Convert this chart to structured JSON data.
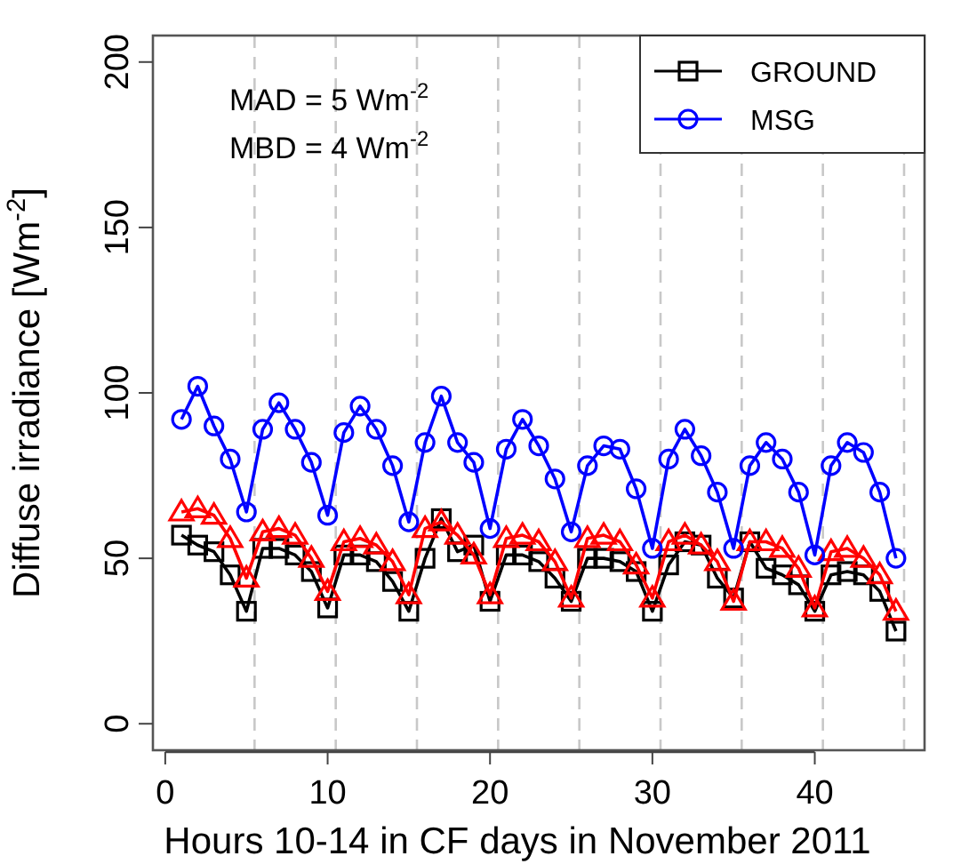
{
  "chart_data": {
    "type": "line",
    "xlabel": "Hours 10-14 in CF days in November 2011",
    "ylabel": "Diffuse irradiance [Wm$^{-2}$]",
    "x": [
      1,
      2,
      3,
      4,
      5,
      6,
      7,
      8,
      9,
      10,
      11,
      12,
      13,
      14,
      15,
      16,
      17,
      18,
      19,
      20,
      21,
      22,
      23,
      24,
      25,
      26,
      27,
      28,
      29,
      30,
      31,
      32,
      33,
      34,
      35,
      36,
      37,
      38,
      39,
      40,
      41,
      42,
      43,
      44,
      45
    ],
    "xlim": [
      -0.76,
      46.76
    ],
    "xticks": [
      0,
      10,
      20,
      30,
      40
    ],
    "ylim": [
      -8,
      208
    ],
    "yticks": [
      0,
      50,
      100,
      150,
      200
    ],
    "grid": false,
    "legend": "top right",
    "line_style": "solid",
    "annotations": [
      "MAD =  5 Wm$^{-2}$",
      "MBD  =  4 Wm$^{-2}$"
    ],
    "ref_lines": [
      {
        "axis": "x",
        "value": 5.5,
        "color": "#c8c8c8",
        "line_style": "dashed"
      },
      {
        "axis": "x",
        "value": 10.5,
        "color": "#c8c8c8",
        "line_style": "dashed"
      },
      {
        "axis": "x",
        "value": 15.5,
        "color": "#c8c8c8",
        "line_style": "dashed"
      },
      {
        "axis": "x",
        "value": 20.5,
        "color": "#c8c8c8",
        "line_style": "dashed"
      },
      {
        "axis": "x",
        "value": 25.5,
        "color": "#c8c8c8",
        "line_style": "dashed"
      },
      {
        "axis": "x",
        "value": 30.5,
        "color": "#c8c8c8",
        "line_style": "dashed"
      },
      {
        "axis": "x",
        "value": 35.5,
        "color": "#c8c8c8",
        "line_style": "dashed"
      },
      {
        "axis": "x",
        "value": 40.5,
        "color": "#c8c8c8",
        "line_style": "dashed"
      },
      {
        "axis": "x",
        "value": 45.5,
        "color": "#c8c8c8",
        "line_style": "dashed"
      }
    ],
    "series": [
      {
        "name": "GROUND",
        "color": "#000000",
        "marker": "square",
        "values": [
          57,
          54,
          52,
          45,
          34,
          53,
          53,
          51,
          46,
          35,
          51,
          51,
          49,
          43,
          34,
          50,
          62,
          52,
          54,
          37,
          51,
          51,
          49,
          44,
          37,
          50,
          50,
          49,
          46,
          34,
          48,
          55,
          54,
          44,
          38,
          55,
          47,
          45,
          42,
          34,
          45,
          46,
          45,
          40,
          28
        ]
      },
      {
        "color": "#ff0000",
        "marker": "triangle",
        "values": [
          64,
          65,
          63,
          56,
          44,
          58,
          59,
          57,
          50,
          40,
          55,
          56,
          54,
          49,
          39,
          59,
          61,
          57,
          51,
          39,
          56,
          57,
          55,
          49,
          38,
          56,
          57,
          55,
          48,
          38,
          55,
          57,
          54,
          49,
          37,
          55,
          55,
          53,
          47,
          35,
          52,
          53,
          50,
          45,
          34
        ]
      },
      {
        "name": "MSG",
        "color": "#0000ff",
        "marker": "circle",
        "values": [
          92,
          102,
          90,
          80,
          64,
          89,
          97,
          89,
          79,
          63,
          88,
          96,
          89,
          78,
          61,
          85,
          99,
          85,
          79,
          59,
          83,
          92,
          84,
          74,
          58,
          78,
          84,
          83,
          71,
          53,
          80,
          89,
          81,
          70,
          53,
          78,
          85,
          80,
          70,
          51,
          78,
          85,
          82,
          70,
          50
        ]
      }
    ]
  }
}
